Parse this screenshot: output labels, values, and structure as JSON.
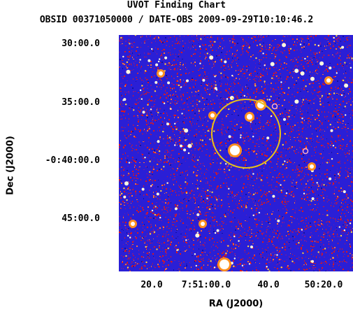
{
  "title": {
    "line1": "UVOT Finding Chart",
    "line2": "OBSID 00371050000 / DATE-OBS 2009-09-29T10:10:46.2"
  },
  "axes": {
    "xlabel": "RA (J2000)",
    "ylabel": "Dec (J2000)",
    "x_ticks": [
      "20.0",
      "7:51:00.0",
      "40.0",
      "50:20.0"
    ],
    "y_ticks": [
      "30:00.0",
      "35:00.0",
      "-0:40:00.0",
      "45:00.0"
    ]
  },
  "colors": {
    "background_noise": "#2a1fd6",
    "hot_pixels": "#ff2020",
    "stars": "#ffe060",
    "error_circle": "#e8c21a",
    "source_marker": "#ffb0c0"
  }
}
